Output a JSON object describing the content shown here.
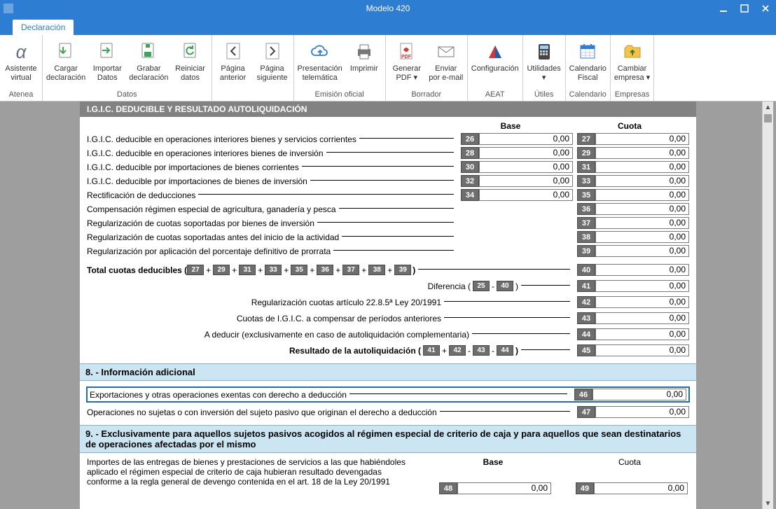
{
  "window": {
    "title": "Modelo 420",
    "tab": "Declaración"
  },
  "ribbon": {
    "groups": [
      {
        "label": "Atenea",
        "buttons": [
          {
            "name": "asistente-virtual",
            "label": "Asistente\nvirtual",
            "icon": "alpha"
          }
        ]
      },
      {
        "label": "Datos",
        "buttons": [
          {
            "name": "cargar-declaracion",
            "label": "Cargar\ndeclaración",
            "icon": "doc-down"
          },
          {
            "name": "importar-datos",
            "label": "Importar\nDatos",
            "icon": "doc-right"
          },
          {
            "name": "grabar-declaracion",
            "label": "Grabar\ndeclaración",
            "icon": "doc-save"
          },
          {
            "name": "reiniciar-datos",
            "label": "Reiniciar\ndatos",
            "icon": "doc-refresh"
          }
        ]
      },
      {
        "label": "",
        "buttons": [
          {
            "name": "pagina-anterior",
            "label": "Página\nanterior",
            "icon": "page-prev"
          },
          {
            "name": "pagina-siguiente",
            "label": "Página\nsiguiente",
            "icon": "page-next"
          }
        ]
      },
      {
        "label": "Emisión oficial",
        "buttons": [
          {
            "name": "presentacion-telematica",
            "label": "Presentación\ntelemática",
            "icon": "cloud-up"
          },
          {
            "name": "imprimir",
            "label": "Imprimir",
            "icon": "printer"
          }
        ]
      },
      {
        "label": "Borrador",
        "buttons": [
          {
            "name": "generar-pdf",
            "label": "Generar\nPDF ▾",
            "icon": "pdf"
          },
          {
            "name": "enviar-email",
            "label": "Enviar\npor e-mail",
            "icon": "mail"
          }
        ]
      },
      {
        "label": "AEAT",
        "buttons": [
          {
            "name": "configuracion",
            "label": "Configuración",
            "icon": "aeat"
          }
        ]
      },
      {
        "label": "Útiles",
        "buttons": [
          {
            "name": "utilidades",
            "label": "Utilidades\n▾",
            "icon": "calc"
          }
        ]
      },
      {
        "label": "Calendario",
        "buttons": [
          {
            "name": "calendario-fiscal",
            "label": "Calendario\nFiscal",
            "icon": "calendar"
          }
        ]
      },
      {
        "label": "Empresas",
        "buttons": [
          {
            "name": "cambiar-empresa",
            "label": "Cambiar\nempresa ▾",
            "icon": "folder-up"
          }
        ]
      }
    ]
  },
  "form": {
    "darkHeader": "I.G.I.C. DEDUCIBLE Y RESULTADO AUTOLIQUIDACIÓN",
    "colBase": "Base",
    "colCuota": "Cuota",
    "rows": [
      {
        "text": "I.G.I.C. deducible en operaciones interiores bienes y servicios corrientes",
        "base": {
          "n": "26",
          "v": "0,00"
        },
        "cuota": {
          "n": "27",
          "v": "0,00"
        }
      },
      {
        "text": "I.G.I.C. deducible en operaciones interiores bienes de inversión",
        "base": {
          "n": "28",
          "v": "0,00"
        },
        "cuota": {
          "n": "29",
          "v": "0,00"
        }
      },
      {
        "text": "I.G.I.C. deducible por importaciones de bienes corrientes",
        "base": {
          "n": "30",
          "v": "0,00"
        },
        "cuota": {
          "n": "31",
          "v": "0,00"
        }
      },
      {
        "text": "I.G.I.C. deducible por importaciones de bienes de inversión",
        "base": {
          "n": "32",
          "v": "0,00"
        },
        "cuota": {
          "n": "33",
          "v": "0,00"
        }
      },
      {
        "text": "Rectificación de deducciones",
        "base": {
          "n": "34",
          "v": "0,00"
        },
        "cuota": {
          "n": "35",
          "v": "0,00"
        }
      },
      {
        "text": "Compensación régimen especial de agricultura, ganadería y pesca",
        "cuota": {
          "n": "36",
          "v": "0,00"
        }
      },
      {
        "text": "Regularización de cuotas soportadas por bienes de inversión",
        "cuota": {
          "n": "37",
          "v": "0,00"
        }
      },
      {
        "text": "Regularización de cuotas soportadas antes del inicio de la actividad",
        "cuota": {
          "n": "38",
          "v": "0,00"
        }
      },
      {
        "text": "Regularización por aplicación del porcentaje definitivo de prorrata",
        "cuota": {
          "n": "39",
          "v": "0,00"
        }
      }
    ],
    "totalLabel": "Total cuotas deducibles (",
    "totalNums": [
      "27",
      "29",
      "31",
      "33",
      "35",
      "36",
      "37",
      "38",
      "39"
    ],
    "totalClose": ")",
    "totalCuota": {
      "n": "40",
      "v": "0,00"
    },
    "difLabel": "Diferencia (",
    "difNums": [
      "25",
      "40"
    ],
    "difCuota": {
      "n": "41",
      "v": "0,00"
    },
    "reg22Label": "Regularización cuotas artículo 22.8.5ª Ley 20/1991",
    "reg22Cuota": {
      "n": "42",
      "v": "0,00"
    },
    "compLabel": "Cuotas de I.G.I.C. a compensar de períodos anteriores",
    "compCuota": {
      "n": "43",
      "v": "0,00"
    },
    "dedLabel": "A deducir (exclusivamente en caso de autoliquidación complementaria)",
    "dedCuota": {
      "n": "44",
      "v": "0,00"
    },
    "resLabel": "Resultado de la autoliquidación (",
    "resNums": [
      "41",
      "42",
      "43",
      "44"
    ],
    "resOps": [
      "+",
      "-",
      "-"
    ],
    "resCuota": {
      "n": "45",
      "v": "0,00"
    },
    "sec8": {
      "title": "8. - Información adicional",
      "row1": {
        "text": "Exportaciones y otras operaciones exentas con derecho a deducción",
        "cuota": {
          "n": "46",
          "v": "0,00"
        }
      },
      "row2": {
        "text": "Operaciones no sujetas o con inversión del sujeto pasivo que originan el derecho a deducción",
        "cuota": {
          "n": "47",
          "v": "0,00"
        }
      }
    },
    "sec9": {
      "title": "9. - Exclusivamente para aquellos sujetos pasivos acogidos al régimen especial de criterio de caja y para aquellos que sean destinatarios de operaciones afectadas por el mismo",
      "text": "Importes de las entregas de bienes y prestaciones de servicios a las que habiéndoles aplicado el régimen especial de criterio de caja hubieran resultado devengadas conforme a la regla general de devengo contenida en el art. 18 de la Ley 20/1991",
      "base": {
        "n": "48",
        "v": "0,00"
      },
      "cuota": {
        "n": "49",
        "v": "0,00"
      }
    }
  },
  "colors": {
    "accent": "#2d7dd2",
    "sectionBg": "#cce5f3",
    "numBox": "#6e6e6e"
  }
}
